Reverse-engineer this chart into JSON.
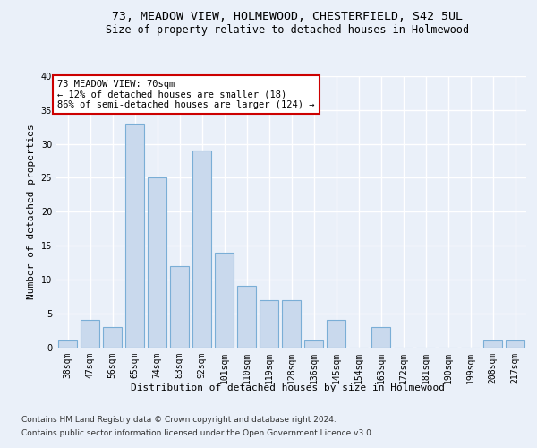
{
  "title_line1": "73, MEADOW VIEW, HOLMEWOOD, CHESTERFIELD, S42 5UL",
  "title_line2": "Size of property relative to detached houses in Holmewood",
  "xlabel": "Distribution of detached houses by size in Holmewood",
  "ylabel": "Number of detached properties",
  "categories": [
    "38sqm",
    "47sqm",
    "56sqm",
    "65sqm",
    "74sqm",
    "83sqm",
    "92sqm",
    "101sqm",
    "110sqm",
    "119sqm",
    "128sqm",
    "136sqm",
    "145sqm",
    "154sqm",
    "163sqm",
    "172sqm",
    "181sqm",
    "190sqm",
    "199sqm",
    "208sqm",
    "217sqm"
  ],
  "values": [
    1,
    4,
    3,
    33,
    25,
    12,
    29,
    14,
    9,
    7,
    7,
    1,
    4,
    0,
    3,
    0,
    0,
    0,
    0,
    1,
    1
  ],
  "bar_color": "#c9d9ed",
  "bar_edgecolor": "#7aaed6",
  "annotation_box_text": "73 MEADOW VIEW: 70sqm\n← 12% of detached houses are smaller (18)\n86% of semi-detached houses are larger (124) →",
  "annotation_box_color": "#ffffff",
  "annotation_box_edgecolor": "#cc0000",
  "footer_line1": "Contains HM Land Registry data © Crown copyright and database right 2024.",
  "footer_line2": "Contains public sector information licensed under the Open Government Licence v3.0.",
  "background_color": "#eaf0f9",
  "plot_background_color": "#eaf0f9",
  "ylim": [
    0,
    40
  ],
  "yticks": [
    0,
    5,
    10,
    15,
    20,
    25,
    30,
    35,
    40
  ],
  "grid_color": "#ffffff",
  "title_fontsize": 9.5,
  "subtitle_fontsize": 8.5,
  "axis_label_fontsize": 8,
  "tick_fontsize": 7,
  "annotation_fontsize": 7.5,
  "footer_fontsize": 6.5
}
